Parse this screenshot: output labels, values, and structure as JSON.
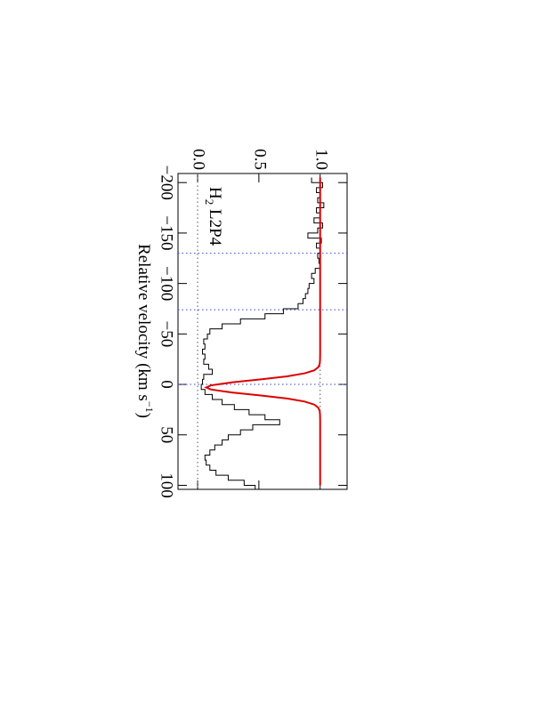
{
  "chart_data": {
    "type": "line",
    "rotated": true,
    "annotation": {
      "main": "H",
      "sub": "2",
      "rest": " L2P4"
    },
    "x_label": {
      "main": "Relative velocity (km s",
      "sup": "−1",
      "end": ")"
    },
    "xlim": [
      -209,
      104
    ],
    "ylim": [
      -0.16,
      1.22
    ],
    "xticks": [
      {
        "value": -200,
        "label": "−200"
      },
      {
        "value": -150,
        "label": "−150"
      },
      {
        "value": -100,
        "label": "−100"
      },
      {
        "value": -50,
        "label": "−50"
      },
      0,
      50,
      100
    ],
    "yticks": [
      {
        "value": 0,
        "label": "0.0"
      },
      {
        "value": 0.5,
        "label": "0.5"
      },
      {
        "value": 1,
        "label": "1.0"
      }
    ],
    "vlines": [
      -130,
      -74,
      0
    ],
    "vline_color": "#3344dd",
    "hlines": [
      0,
      1
    ],
    "hline_color": "#555555",
    "series": [
      {
        "style": "step",
        "color": "#000000",
        "x": [
          -205,
          -200,
          -195,
          -190,
          -185,
          -180,
          -175,
          -170,
          -165,
          -160,
          -155,
          -150,
          -145,
          -140,
          -135,
          -130,
          -125,
          -120,
          -115,
          -110,
          -105,
          -100,
          -95,
          -90,
          -85,
          -80,
          -75,
          -70,
          -65,
          -60,
          -55,
          -50,
          -45,
          -40,
          -35,
          -30,
          -25,
          -20,
          -15,
          -10,
          -5,
          0,
          5,
          10,
          15,
          20,
          25,
          30,
          35,
          40,
          45,
          50,
          55,
          60,
          65,
          70,
          75,
          80,
          85,
          90,
          95,
          100
        ],
        "values": [
          0.93,
          1.02,
          0.97,
          1.0,
          0.98,
          1.03,
          0.97,
          1.0,
          0.95,
          1.02,
          0.98,
          0.9,
          1.01,
          0.97,
          1.0,
          0.98,
          0.99,
          1.0,
          0.96,
          0.93,
          0.95,
          0.91,
          0.9,
          0.88,
          0.86,
          0.82,
          0.7,
          0.55,
          0.35,
          0.2,
          0.1,
          0.08,
          0.05,
          0.06,
          0.04,
          0.06,
          0.05,
          0.09,
          0.12,
          0.05,
          0.04,
          0.03,
          0.06,
          0.12,
          0.2,
          0.3,
          0.42,
          0.55,
          0.67,
          0.45,
          0.35,
          0.25,
          0.2,
          0.14,
          0.1,
          0.06,
          0.07,
          0.1,
          0.15,
          0.25,
          0.38,
          0.47
        ]
      },
      {
        "style": "smooth",
        "color": "#dd0000",
        "x": [
          -205,
          -30,
          -24,
          -20,
          -17,
          -14,
          -11,
          -8,
          -5,
          -2,
          1,
          3,
          5,
          8,
          11,
          14,
          17,
          20,
          23,
          26,
          30,
          36,
          100
        ],
        "values": [
          1.0,
          1.0,
          0.999,
          0.996,
          0.984,
          0.952,
          0.874,
          0.73,
          0.516,
          0.279,
          0.107,
          0.07,
          0.107,
          0.279,
          0.516,
          0.73,
          0.874,
          0.952,
          0.984,
          0.996,
          0.999,
          1.0,
          1.0
        ]
      }
    ]
  }
}
